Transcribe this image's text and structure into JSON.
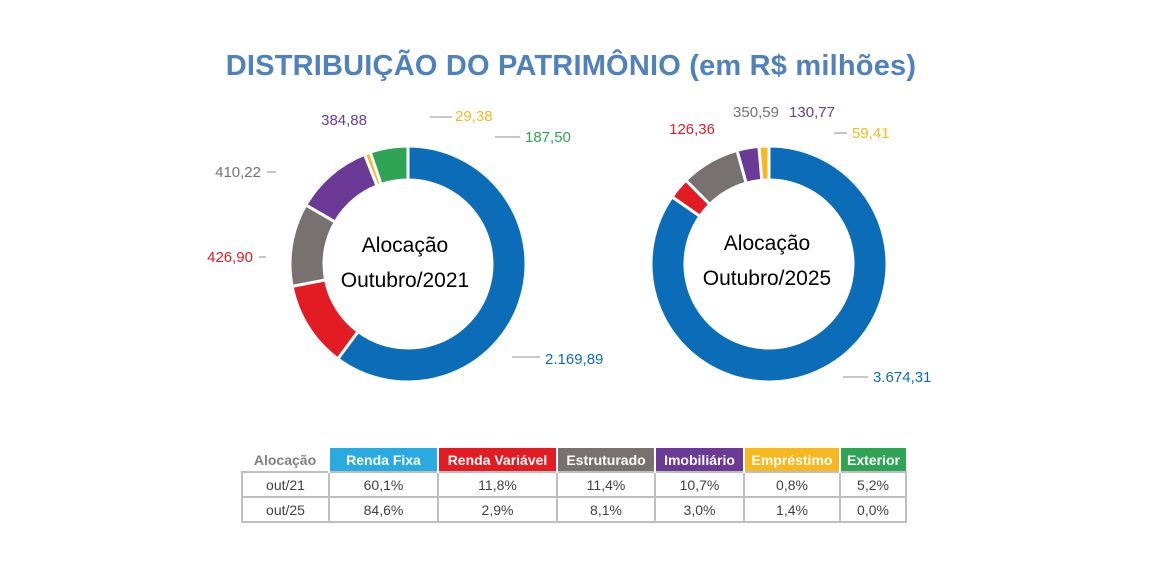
{
  "title": "DISTRIBUIÇÃO DO PATRIMÔNIO (em R$ milhões)",
  "chart_data": [
    {
      "type": "pie",
      "center_line1": "Alocação",
      "center_line2": "Outubro/2021",
      "slices": [
        {
          "name": "Renda Fixa",
          "value": 2169.89,
          "label": "2.169,89",
          "color": "#0b6cb8"
        },
        {
          "name": "Renda Variável",
          "value": 426.9,
          "label": "426,90",
          "color": "#e31c23"
        },
        {
          "name": "Estruturado",
          "value": 410.22,
          "label": "410,22",
          "color": "#777270"
        },
        {
          "name": "Imobiliário",
          "value": 384.88,
          "label": "384,88",
          "color": "#6a3a96"
        },
        {
          "name": "Empréstimo",
          "value": 29.38,
          "label": "29,38",
          "color": "#f7b81f"
        },
        {
          "name": "Exterior",
          "value": 187.5,
          "label": "187,50",
          "color": "#2ea454"
        }
      ]
    },
    {
      "type": "pie",
      "center_line1": "Alocação",
      "center_line2": "Outubro/2025",
      "slices": [
        {
          "name": "Renda Fixa",
          "value": 3674.31,
          "label": "3.674,31",
          "color": "#0b6cb8"
        },
        {
          "name": "Renda Variável",
          "value": 126.36,
          "label": "126,36",
          "color": "#e31c23"
        },
        {
          "name": "Estruturado",
          "value": 350.59,
          "label": "350,59",
          "color": "#777270"
        },
        {
          "name": "Imobiliário",
          "value": 130.77,
          "label": "130,77",
          "color": "#6a3a96"
        },
        {
          "name": "Empréstimo",
          "value": 59.41,
          "label": "59,41",
          "color": "#f7b81f"
        },
        {
          "name": "Exterior",
          "value": 0.0,
          "label": "",
          "color": "#2ea454"
        }
      ]
    },
    {
      "type": "table",
      "header_label": "Alocação",
      "columns": [
        {
          "name": "Renda Fixa",
          "color": "#29abe2"
        },
        {
          "name": "Renda Variável",
          "color": "#e31c23"
        },
        {
          "name": "Estruturado",
          "color": "#777270"
        },
        {
          "name": "Imobiliário",
          "color": "#6a3a96"
        },
        {
          "name": "Empréstimo",
          "color": "#f7b81f"
        },
        {
          "name": "Exterior",
          "color": "#2ea454"
        }
      ],
      "rows": [
        {
          "label": "out/21",
          "values": [
            "60,1%",
            "11,8%",
            "11,4%",
            "10,7%",
            "0,8%",
            "5,2%"
          ]
        },
        {
          "label": "out/25",
          "values": [
            "84,6%",
            "2,9%",
            "8,1%",
            "3,0%",
            "1,4%",
            "0,0%"
          ]
        }
      ]
    }
  ]
}
